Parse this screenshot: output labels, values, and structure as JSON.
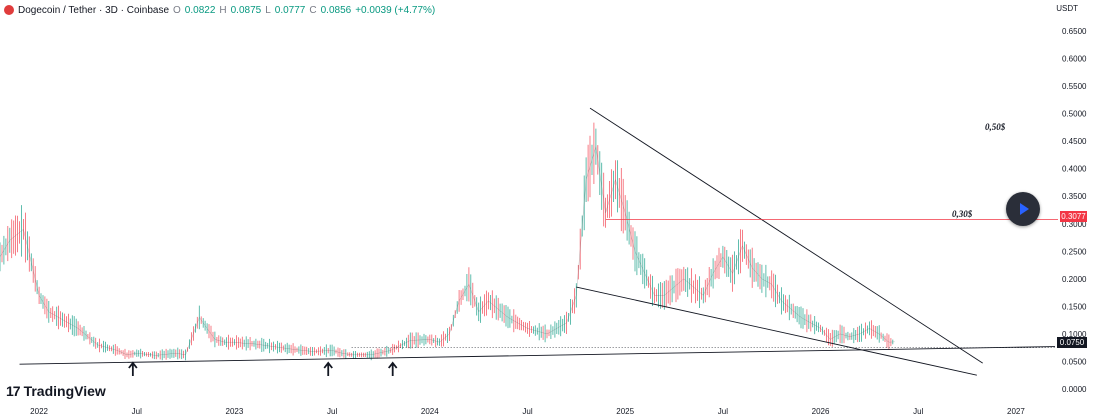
{
  "header": {
    "symbol": "Dogecoin / Tether · 3D · Coinbase",
    "open_label": "O",
    "open": "0.0822",
    "high_label": "H",
    "high": "0.0875",
    "low_label": "L",
    "low": "0.0777",
    "close_label": "C",
    "close": "0.0856",
    "change": "+0.0039 (+4.77%)",
    "coin_color": "#e03c3c"
  },
  "axis": {
    "unit": "USDT"
  },
  "brand": {
    "logo_mark": "17",
    "name": "TradingView"
  },
  "annotations": {
    "level_050": "0,50$",
    "level_030": "0,30$",
    "price_badge_red": "0.3077",
    "price_badge_dark": "0.0750",
    "play_icon": "play-icon",
    "arrow_icon": "arrow-up-icon"
  },
  "colors": {
    "up": "#089981",
    "down": "#f23645",
    "line": "#131722",
    "grid": "#f0f3fa"
  },
  "chart_data": {
    "type": "line",
    "title": "",
    "xlabel": "",
    "ylabel": "",
    "ylim": [
      -0.02,
      0.67
    ],
    "xlim": [
      2021.8,
      2027.2
    ],
    "y_ticks": [
      0.0,
      0.05,
      0.1,
      0.15,
      0.2,
      0.25,
      0.3,
      0.35,
      0.4,
      0.45,
      0.5,
      0.55,
      0.6,
      0.65
    ],
    "y_tick_labels": [
      "0.0000",
      "0.0500",
      "0.1000",
      "0.1500",
      "0.2000",
      "0.2500",
      "0.3000",
      "0.3500",
      "0.4000",
      "0.4500",
      "0.5000",
      "0.5500",
      "0.6000",
      "0.6500"
    ],
    "x_ticks": [
      2022.0,
      2022.5,
      2023.0,
      2023.5,
      2024.0,
      2024.5,
      2025.0,
      2025.5,
      2026.0,
      2026.5,
      2027.0
    ],
    "x_tick_labels": [
      "2022",
      "Jul",
      "2023",
      "Jul",
      "2024",
      "Jul",
      "2025",
      "Jul",
      "2026",
      "Jul",
      "2027"
    ],
    "series": [
      {
        "x": [
          2021.8,
          2021.85,
          2021.92,
          2022.0,
          2022.05,
          2022.1,
          2022.2,
          2022.3,
          2022.4,
          2022.45,
          2022.5,
          2022.6,
          2022.7,
          2022.75,
          2022.82,
          2022.9,
          2022.95,
          2023.0,
          2023.05,
          2023.1,
          2023.2,
          2023.3,
          2023.4,
          2023.5,
          2023.55,
          2023.6,
          2023.7,
          2023.8,
          2023.9,
          2024.0,
          2024.05,
          2024.1,
          2024.15,
          2024.2,
          2024.25,
          2024.3,
          2024.4,
          2024.5,
          2024.6,
          2024.7,
          2024.75,
          2024.8,
          2024.85,
          2024.9,
          2024.95,
          2025.0,
          2025.05,
          2025.1,
          2025.15,
          2025.2,
          2025.3,
          2025.4,
          2025.45,
          2025.5,
          2025.55,
          2025.6,
          2025.65,
          2025.7,
          2025.75,
          2025.8,
          2025.9,
          2026.0,
          2026.05,
          2026.1,
          2026.15,
          2026.2,
          2026.25,
          2026.3,
          2026.35,
          2026.38
        ],
        "values": [
          0.24,
          0.27,
          0.29,
          0.17,
          0.14,
          0.13,
          0.11,
          0.08,
          0.07,
          0.062,
          0.065,
          0.061,
          0.065,
          0.062,
          0.13,
          0.09,
          0.085,
          0.085,
          0.083,
          0.082,
          0.077,
          0.072,
          0.068,
          0.07,
          0.065,
          0.062,
          0.062,
          0.07,
          0.088,
          0.09,
          0.085,
          0.1,
          0.16,
          0.19,
          0.14,
          0.16,
          0.13,
          0.11,
          0.1,
          0.12,
          0.17,
          0.38,
          0.44,
          0.32,
          0.38,
          0.32,
          0.25,
          0.21,
          0.17,
          0.17,
          0.2,
          0.17,
          0.21,
          0.24,
          0.21,
          0.26,
          0.22,
          0.2,
          0.19,
          0.16,
          0.13,
          0.11,
          0.09,
          0.1,
          0.095,
          0.1,
          0.11,
          0.1,
          0.085,
          0.0856
        ]
      }
    ],
    "trendlines": [
      {
        "from": [
          2021.9,
          0.045
        ],
        "to": [
          2027.2,
          0.077
        ]
      },
      {
        "from": [
          2024.82,
          0.51
        ],
        "to": [
          2026.83,
          0.047
        ]
      },
      {
        "from": [
          2024.75,
          0.185
        ],
        "to": [
          2026.8,
          0.025
        ]
      }
    ],
    "hline": {
      "y": 0.3077,
      "from_x": 2024.9
    },
    "close_dotted": {
      "y": 0.075,
      "from_x": 2023.6
    },
    "arrow_markers_x": [
      2022.48,
      2023.48,
      2023.81
    ]
  }
}
